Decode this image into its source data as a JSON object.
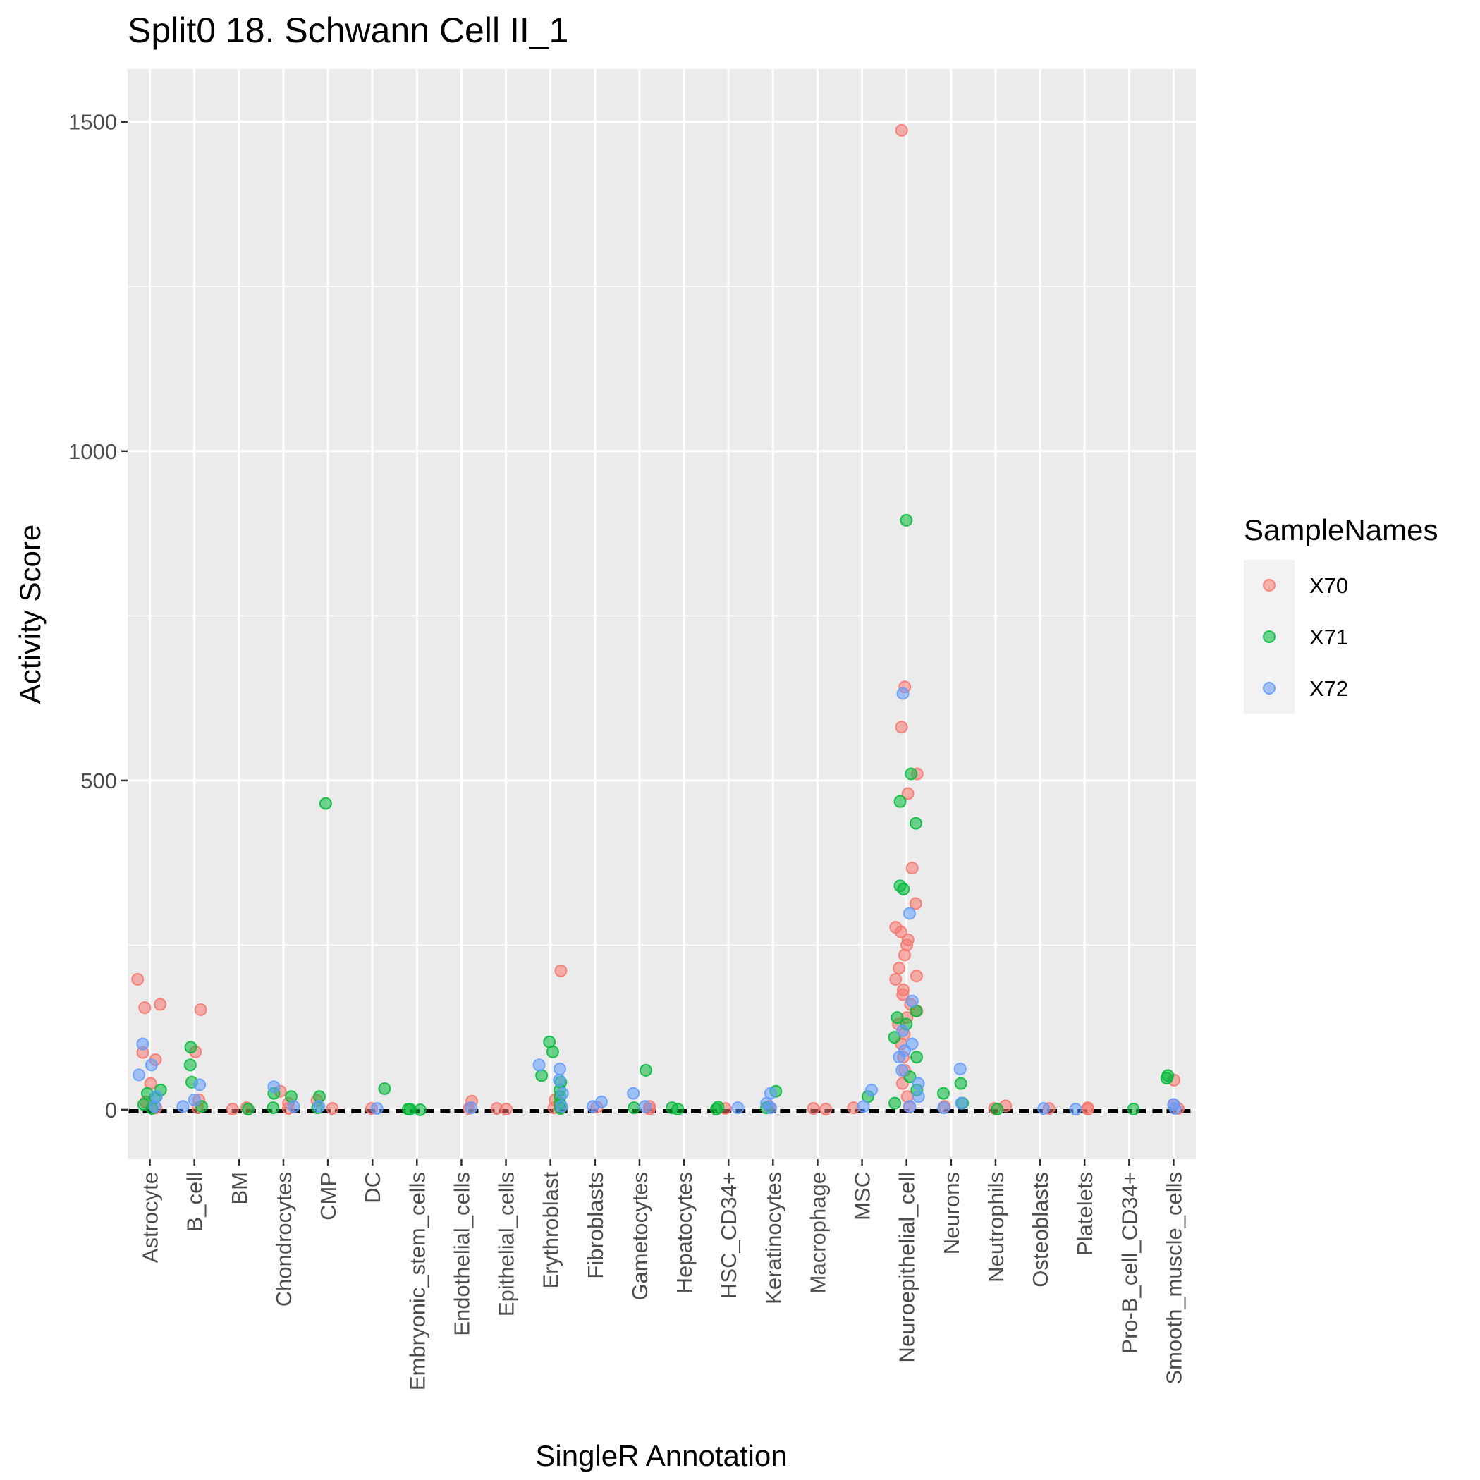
{
  "chart_data": {
    "type": "scatter",
    "title": "Split0 18. Schwann Cell II_1",
    "xlabel": "SingleR Annotation",
    "ylabel": "Activity Score",
    "ylim": [
      -75,
      1580
    ],
    "yticks": [
      0,
      500,
      1000,
      1500
    ],
    "ytick_labels": [
      "0",
      "500",
      "1000",
      "1500"
    ],
    "grid": true,
    "legend_position": "right",
    "legend_title": "SampleNames",
    "categories": [
      "Astrocyte",
      "B_cell",
      "BM",
      "Chondrocytes",
      "CMP",
      "DC",
      "Embryonic_stem_cells",
      "Endothelial_cells",
      "Epithelial_cells",
      "Erythroblast",
      "Fibroblasts",
      "Gametocytes",
      "Hepatocytes",
      "HSC_CD34+",
      "Keratinocytes",
      "Macrophage",
      "MSC",
      "Neuroepithelial_cell",
      "Neurons",
      "Neutrophils",
      "Osteoblasts",
      "Platelets",
      "Pro-B_cell_CD34+",
      "Smooth_muscle_cells"
    ],
    "series": [
      {
        "name": "X70",
        "color": "#F8766D",
        "points": [
          [
            "Astrocyte",
            198
          ],
          [
            "Astrocyte",
            160
          ],
          [
            "Astrocyte",
            155
          ],
          [
            "Astrocyte",
            87
          ],
          [
            "Astrocyte",
            76
          ],
          [
            "Astrocyte",
            40
          ],
          [
            "Astrocyte",
            12
          ],
          [
            "Astrocyte",
            3
          ],
          [
            "B_cell",
            152
          ],
          [
            "B_cell",
            88
          ],
          [
            "B_cell",
            15
          ],
          [
            "B_cell",
            3
          ],
          [
            "BM",
            3
          ],
          [
            "BM",
            1
          ],
          [
            "Chondrocytes",
            28
          ],
          [
            "Chondrocytes",
            10
          ],
          [
            "Chondrocytes",
            2
          ],
          [
            "CMP",
            14
          ],
          [
            "CMP",
            2
          ],
          [
            "DC",
            2
          ],
          [
            "Endothelial_cells",
            13
          ],
          [
            "Endothelial_cells",
            2
          ],
          [
            "Epithelial_cells",
            2
          ],
          [
            "Epithelial_cells",
            1
          ],
          [
            "Erythroblast",
            211
          ],
          [
            "Erythroblast",
            15
          ],
          [
            "Erythroblast",
            3
          ],
          [
            "Fibroblasts",
            4
          ],
          [
            "Gametocytes",
            5
          ],
          [
            "Gametocytes",
            1
          ],
          [
            "HSC_CD34+",
            2
          ],
          [
            "Keratinocytes",
            5
          ],
          [
            "Macrophage",
            1
          ],
          [
            "Macrophage",
            2
          ],
          [
            "MSC",
            3
          ],
          [
            "Neuroepithelial_cell",
            1487
          ],
          [
            "Neuroepithelial_cell",
            642
          ],
          [
            "Neuroepithelial_cell",
            581
          ],
          [
            "Neuroepithelial_cell",
            510
          ],
          [
            "Neuroepithelial_cell",
            480
          ],
          [
            "Neuroepithelial_cell",
            367
          ],
          [
            "Neuroepithelial_cell",
            313
          ],
          [
            "Neuroepithelial_cell",
            277
          ],
          [
            "Neuroepithelial_cell",
            270
          ],
          [
            "Neuroepithelial_cell",
            258
          ],
          [
            "Neuroepithelial_cell",
            250
          ],
          [
            "Neuroepithelial_cell",
            235
          ],
          [
            "Neuroepithelial_cell",
            215
          ],
          [
            "Neuroepithelial_cell",
            203
          ],
          [
            "Neuroepithelial_cell",
            198
          ],
          [
            "Neuroepithelial_cell",
            182
          ],
          [
            "Neuroepithelial_cell",
            175
          ],
          [
            "Neuroepithelial_cell",
            160
          ],
          [
            "Neuroepithelial_cell",
            150
          ],
          [
            "Neuroepithelial_cell",
            140
          ],
          [
            "Neuroepithelial_cell",
            130
          ],
          [
            "Neuroepithelial_cell",
            115
          ],
          [
            "Neuroepithelial_cell",
            100
          ],
          [
            "Neuroepithelial_cell",
            80
          ],
          [
            "Neuroepithelial_cell",
            60
          ],
          [
            "Neuroepithelial_cell",
            40
          ],
          [
            "Neuroepithelial_cell",
            20
          ],
          [
            "Neuroepithelial_cell",
            5
          ],
          [
            "Neurons",
            5
          ],
          [
            "Neutrophils",
            6
          ],
          [
            "Neutrophils",
            2
          ],
          [
            "Osteoblasts",
            2
          ],
          [
            "Platelets",
            3
          ],
          [
            "Platelets",
            1
          ],
          [
            "Smooth_muscle_cells",
            45
          ],
          [
            "Smooth_muscle_cells",
            8
          ],
          [
            "Smooth_muscle_cells",
            2
          ]
        ]
      },
      {
        "name": "X71",
        "color": "#00BA38",
        "points": [
          [
            "Astrocyte",
            30
          ],
          [
            "Astrocyte",
            25
          ],
          [
            "Astrocyte",
            18
          ],
          [
            "Astrocyte",
            8
          ],
          [
            "Astrocyte",
            2
          ],
          [
            "B_cell",
            95
          ],
          [
            "B_cell",
            68
          ],
          [
            "B_cell",
            42
          ],
          [
            "B_cell",
            5
          ],
          [
            "BM",
            1
          ],
          [
            "Chondrocytes",
            25
          ],
          [
            "Chondrocytes",
            20
          ],
          [
            "Chondrocytes",
            3
          ],
          [
            "CMP",
            465
          ],
          [
            "CMP",
            20
          ],
          [
            "CMP",
            3
          ],
          [
            "DC",
            32
          ],
          [
            "Embryonic_stem_cells",
            1
          ],
          [
            "Embryonic_stem_cells",
            0
          ],
          [
            "Embryonic_stem_cells",
            1
          ],
          [
            "Erythroblast",
            103
          ],
          [
            "Erythroblast",
            88
          ],
          [
            "Erythroblast",
            52
          ],
          [
            "Erythroblast",
            42
          ],
          [
            "Erythroblast",
            30
          ],
          [
            "Erythroblast",
            20
          ],
          [
            "Erythroblast",
            10
          ],
          [
            "Erythroblast",
            2
          ],
          [
            "Gametocytes",
            60
          ],
          [
            "Gametocytes",
            3
          ],
          [
            "Hepatocytes",
            3
          ],
          [
            "Hepatocytes",
            1
          ],
          [
            "HSC_CD34+",
            4
          ],
          [
            "HSC_CD34+",
            1
          ],
          [
            "Keratinocytes",
            28
          ],
          [
            "Keratinocytes",
            3
          ],
          [
            "MSC",
            20
          ],
          [
            "Neuroepithelial_cell",
            895
          ],
          [
            "Neuroepithelial_cell",
            510
          ],
          [
            "Neuroepithelial_cell",
            468
          ],
          [
            "Neuroepithelial_cell",
            435
          ],
          [
            "Neuroepithelial_cell",
            340
          ],
          [
            "Neuroepithelial_cell",
            335
          ],
          [
            "Neuroepithelial_cell",
            150
          ],
          [
            "Neuroepithelial_cell",
            140
          ],
          [
            "Neuroepithelial_cell",
            130
          ],
          [
            "Neuroepithelial_cell",
            110
          ],
          [
            "Neuroepithelial_cell",
            80
          ],
          [
            "Neuroepithelial_cell",
            50
          ],
          [
            "Neuroepithelial_cell",
            30
          ],
          [
            "Neuroepithelial_cell",
            10
          ],
          [
            "Neurons",
            40
          ],
          [
            "Neurons",
            25
          ],
          [
            "Neurons",
            10
          ],
          [
            "Neutrophils",
            1
          ],
          [
            "Pro-B_cell_CD34+",
            1
          ],
          [
            "Smooth_muscle_cells",
            52
          ],
          [
            "Smooth_muscle_cells",
            48
          ]
        ]
      },
      {
        "name": "X72",
        "color": "#619CFF",
        "points": [
          [
            "Astrocyte",
            100
          ],
          [
            "Astrocyte",
            68
          ],
          [
            "Astrocyte",
            53
          ],
          [
            "Astrocyte",
            20
          ],
          [
            "Astrocyte",
            5
          ],
          [
            "B_cell",
            38
          ],
          [
            "B_cell",
            15
          ],
          [
            "B_cell",
            5
          ],
          [
            "Chondrocytes",
            35
          ],
          [
            "Chondrocytes",
            5
          ],
          [
            "CMP",
            5
          ],
          [
            "DC",
            2
          ],
          [
            "Endothelial_cells",
            3
          ],
          [
            "Erythroblast",
            68
          ],
          [
            "Erythroblast",
            62
          ],
          [
            "Erythroblast",
            45
          ],
          [
            "Erythroblast",
            25
          ],
          [
            "Erythroblast",
            5
          ],
          [
            "Fibroblasts",
            12
          ],
          [
            "Fibroblasts",
            5
          ],
          [
            "Gametocytes",
            25
          ],
          [
            "Gametocytes",
            5
          ],
          [
            "HSC_CD34+",
            3
          ],
          [
            "Keratinocytes",
            25
          ],
          [
            "Keratinocytes",
            10
          ],
          [
            "Keratinocytes",
            3
          ],
          [
            "MSC",
            30
          ],
          [
            "MSC",
            5
          ],
          [
            "Neuroepithelial_cell",
            632
          ],
          [
            "Neuroepithelial_cell",
            298
          ],
          [
            "Neuroepithelial_cell",
            165
          ],
          [
            "Neuroepithelial_cell",
            120
          ],
          [
            "Neuroepithelial_cell",
            100
          ],
          [
            "Neuroepithelial_cell",
            90
          ],
          [
            "Neuroepithelial_cell",
            80
          ],
          [
            "Neuroepithelial_cell",
            60
          ],
          [
            "Neuroepithelial_cell",
            40
          ],
          [
            "Neuroepithelial_cell",
            20
          ],
          [
            "Neuroepithelial_cell",
            5
          ],
          [
            "Neurons",
            62
          ],
          [
            "Neurons",
            10
          ],
          [
            "Neurons",
            3
          ],
          [
            "Osteoblasts",
            2
          ],
          [
            "Platelets",
            1
          ],
          [
            "Smooth_muscle_cells",
            8
          ],
          [
            "Smooth_muscle_cells",
            2
          ]
        ]
      }
    ]
  }
}
